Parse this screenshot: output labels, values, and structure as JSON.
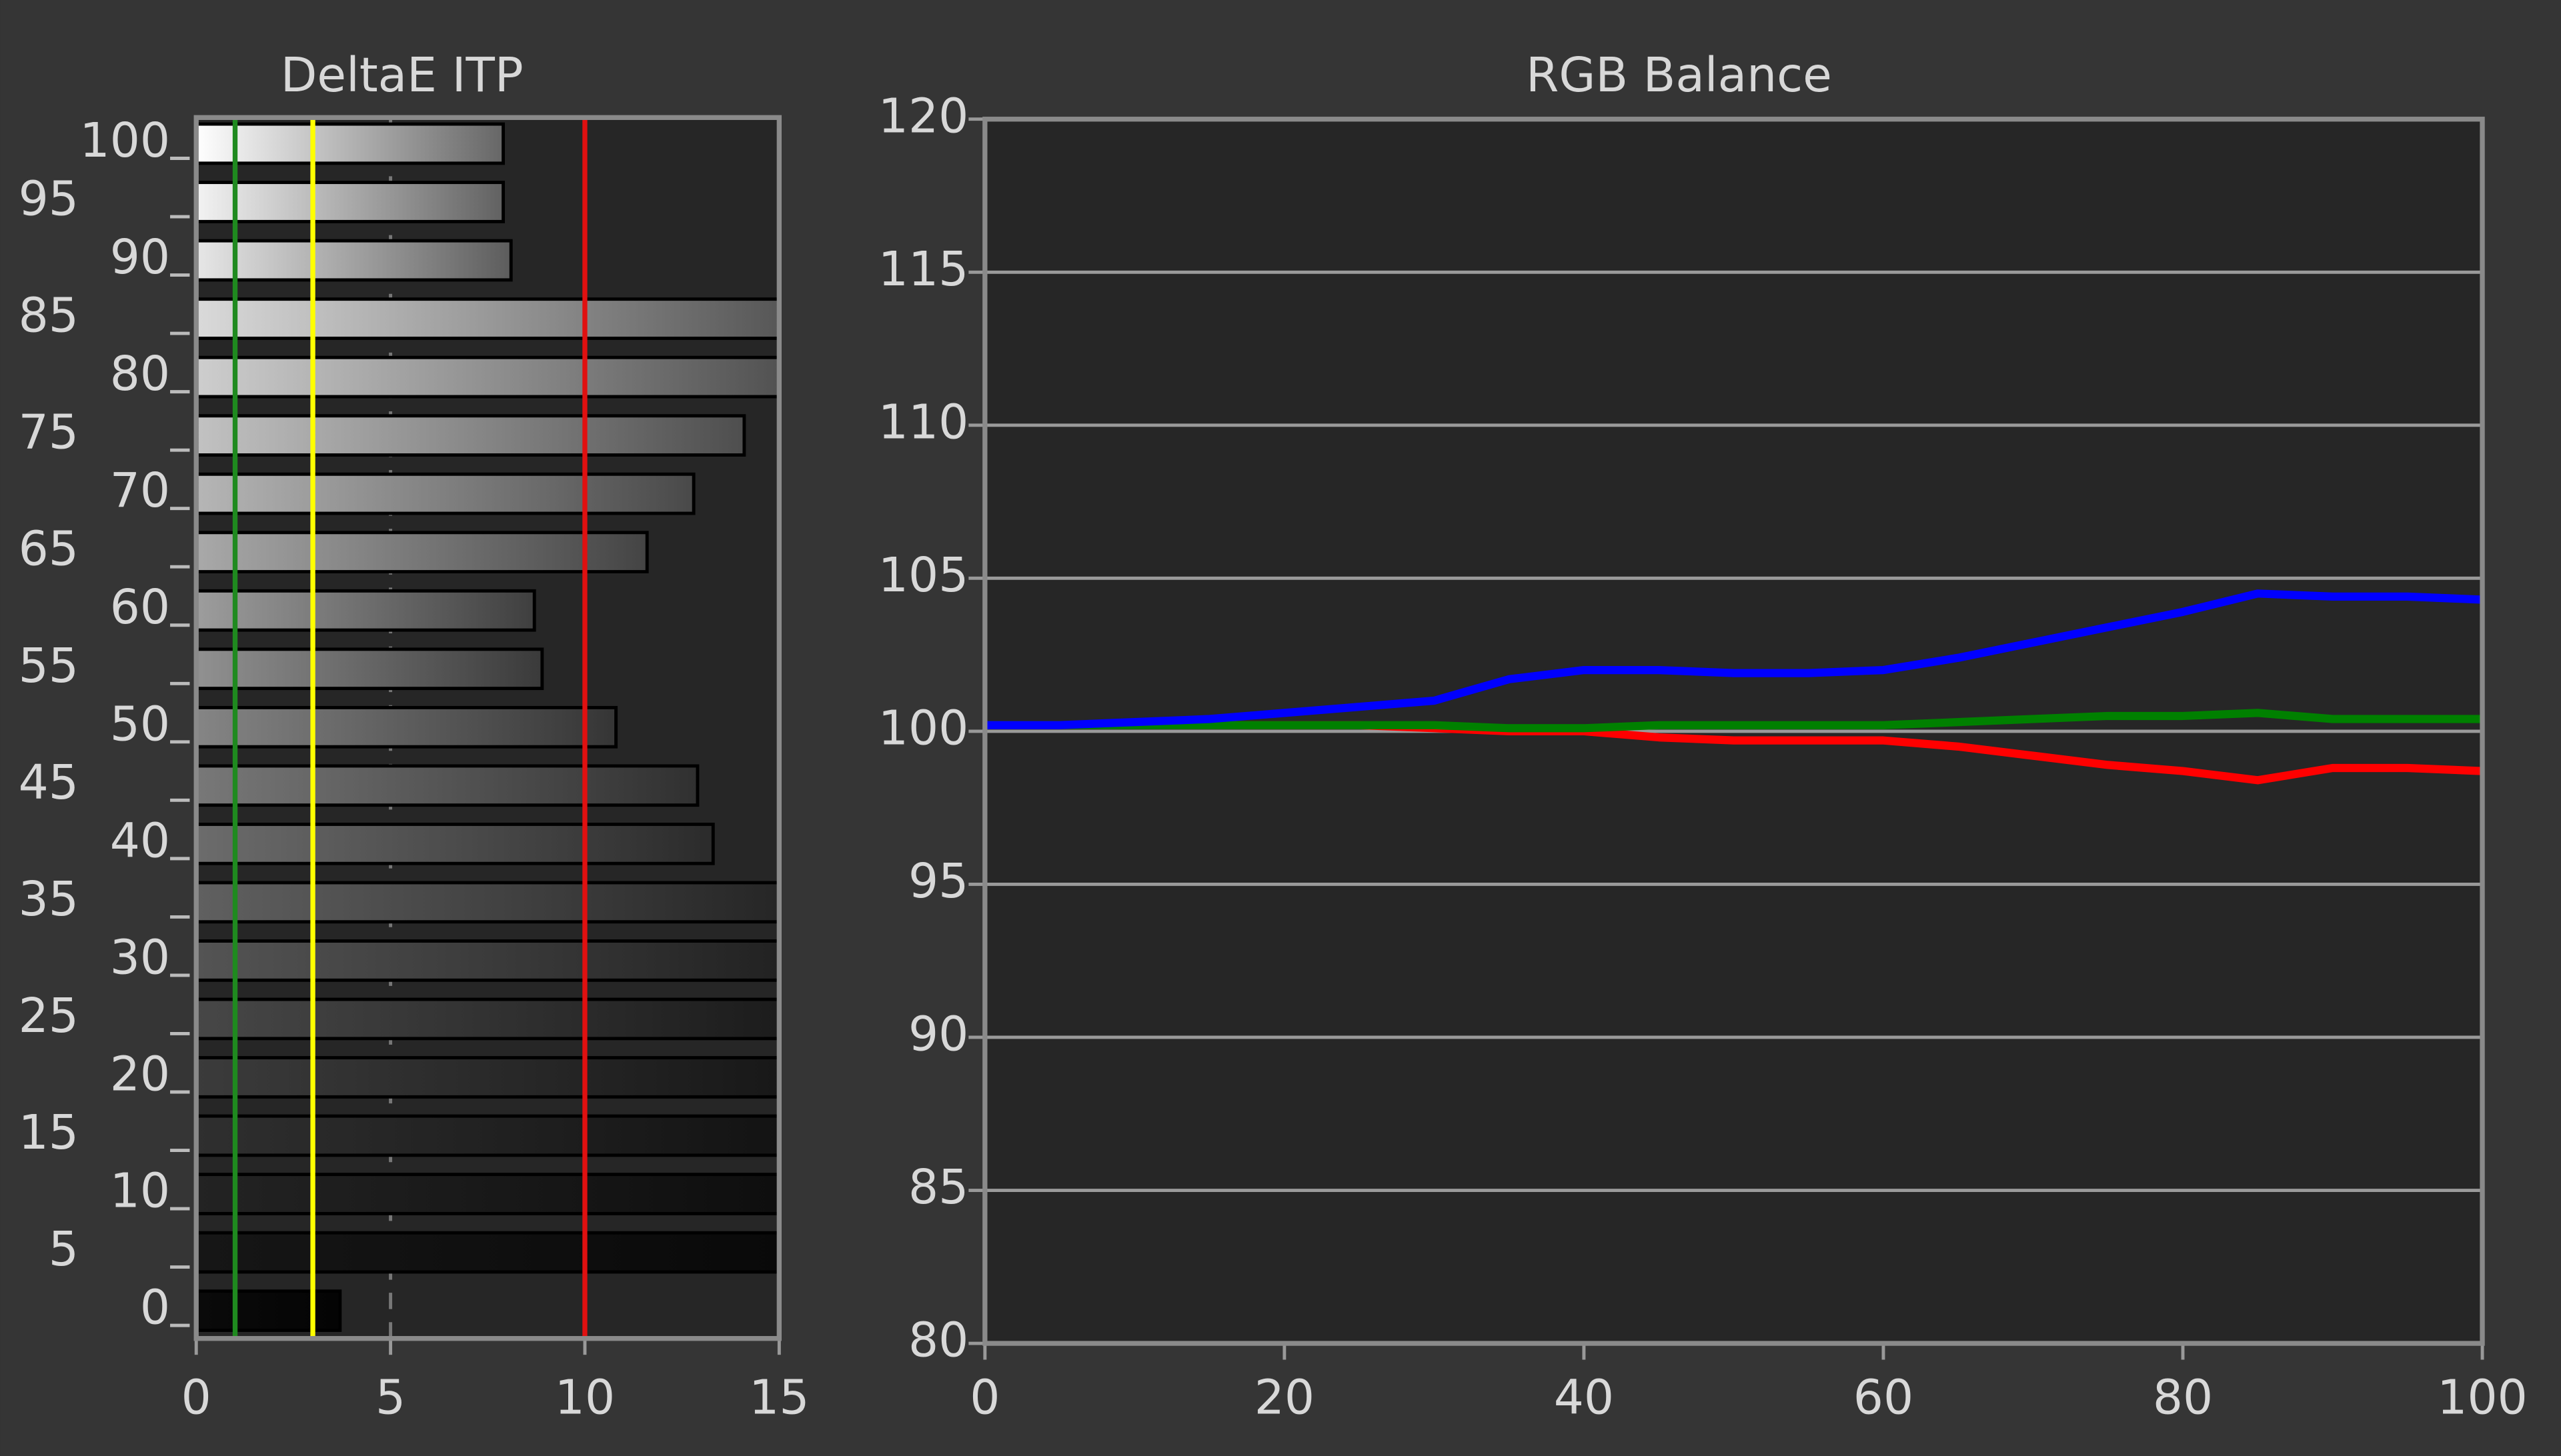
{
  "chart_data": [
    {
      "type": "bar",
      "orientation": "horizontal",
      "title": "DeltaE ITP",
      "categories": [
        "0",
        "5",
        "10",
        "15",
        "20",
        "25",
        "30",
        "35",
        "40",
        "45",
        "50",
        "55",
        "60",
        "65",
        "70",
        "75",
        "80",
        "85",
        "90",
        "95",
        "100"
      ],
      "values": [
        3.7,
        15,
        15,
        15,
        15,
        15,
        15,
        15,
        13.3,
        12.9,
        10.8,
        8.9,
        8.7,
        11.6,
        12.8,
        14.1,
        15,
        15,
        8.1,
        7.9,
        7.9
      ],
      "xlim": [
        0,
        15
      ],
      "xticks": [
        0,
        5,
        10,
        15
      ],
      "reference_lines": [
        {
          "value": 1,
          "color": "#1f8a1f"
        },
        {
          "value": 3,
          "color": "#ffff00"
        },
        {
          "value": 10,
          "color": "#e01010"
        }
      ]
    },
    {
      "type": "line",
      "title": "RGB Balance",
      "x": [
        0,
        5,
        10,
        15,
        20,
        25,
        30,
        35,
        40,
        45,
        50,
        55,
        60,
        65,
        70,
        75,
        80,
        85,
        90,
        95,
        100
      ],
      "series": [
        {
          "name": "Red",
          "color": "#ff0000",
          "values": [
            100.2,
            100.2,
            100.2,
            100.2,
            100.2,
            100.2,
            100.1,
            100.0,
            100.0,
            99.8,
            99.7,
            99.7,
            99.7,
            99.5,
            99.2,
            98.9,
            98.7,
            98.4,
            98.8,
            98.8,
            98.7
          ]
        },
        {
          "name": "Green",
          "color": "#008000",
          "values": [
            100.2,
            100.2,
            100.2,
            100.2,
            100.2,
            100.2,
            100.2,
            100.1,
            100.1,
            100.2,
            100.2,
            100.2,
            100.2,
            100.3,
            100.4,
            100.5,
            100.5,
            100.6,
            100.4,
            100.4,
            100.4
          ]
        },
        {
          "name": "Blue",
          "color": "#0000ff",
          "values": [
            100.2,
            100.2,
            100.3,
            100.4,
            100.6,
            100.8,
            101.0,
            101.7,
            102.0,
            102.0,
            101.9,
            101.9,
            102.0,
            102.4,
            102.9,
            103.4,
            103.9,
            104.5,
            104.4,
            104.4,
            104.3
          ]
        }
      ],
      "xlim": [
        0,
        100
      ],
      "xticks": [
        0,
        20,
        40,
        60,
        80,
        100
      ],
      "ylim": [
        80,
        120
      ],
      "yticks": [
        80,
        85,
        90,
        95,
        100,
        105,
        110,
        115,
        120
      ],
      "grid": true
    }
  ]
}
